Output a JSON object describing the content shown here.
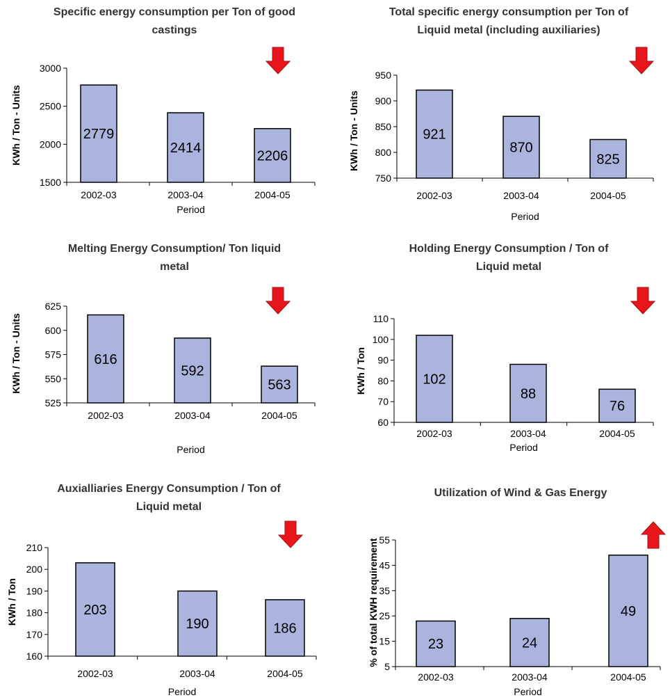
{
  "colors": {
    "bar": "#aab4dc",
    "bar_stroke": "#000000",
    "arrow": "#e8161c",
    "arrow_stroke": "#a01010",
    "axis": "#000000",
    "title": "#333333"
  },
  "chart_data": [
    {
      "type": "bar",
      "title": "Specific energy consumption per Ton of good castings",
      "title_lines": [
        "Specific energy consumption per Ton of good",
        "castings"
      ],
      "categories": [
        "2002-03",
        "2003-04",
        "2004-05"
      ],
      "values": [
        2779,
        2414,
        2206
      ],
      "value_labels": [
        "2779",
        "2414",
        "2206"
      ],
      "xlabel": "Period",
      "ylabel": "KWh / Ton - Units",
      "ylim": [
        1500,
        3000
      ],
      "yticks": [
        1500,
        2000,
        2500,
        3000
      ],
      "ytick_labels": [
        "1500",
        "2000",
        "2500",
        "3000"
      ],
      "trend_arrow": "down",
      "grid": false
    },
    {
      "type": "bar",
      "title": "Total specific energy consumption per Ton of Liquid metal (including auxiliaries)",
      "title_lines": [
        "Total specific energy consumption per Ton of",
        "Liquid metal (including auxiliaries)"
      ],
      "categories": [
        "2002-03",
        "2003-04",
        "2004-05"
      ],
      "values": [
        921,
        870,
        825
      ],
      "value_labels": [
        "921",
        "870",
        "825"
      ],
      "xlabel": "Period",
      "ylabel": "KWh / Ton - Units",
      "ylim": [
        750,
        950
      ],
      "yticks": [
        750,
        800,
        850,
        900,
        950
      ],
      "ytick_labels": [
        "750",
        "800",
        "850",
        "900",
        "950"
      ],
      "trend_arrow": "down",
      "grid": false
    },
    {
      "type": "bar",
      "title": "Melting Energy Consumption/ Ton liquid metal",
      "title_lines": [
        "Melting Energy Consumption/ Ton liquid",
        "metal"
      ],
      "categories": [
        "2002-03",
        "2003-04",
        "2004-05"
      ],
      "values": [
        616,
        592,
        563
      ],
      "value_labels": [
        "616",
        "592",
        "563"
      ],
      "xlabel": "Period",
      "ylabel": "KWh / Ton - Units",
      "ylim": [
        525,
        625
      ],
      "yticks": [
        525,
        550,
        575,
        600,
        625
      ],
      "ytick_labels": [
        "525",
        "550",
        "575",
        "600",
        "625"
      ],
      "trend_arrow": "down",
      "grid": false
    },
    {
      "type": "bar",
      "title": "Holding Energy Consumption / Ton of Liquid metal",
      "title_lines": [
        "Holding Energy Consumption / Ton of",
        "Liquid metal"
      ],
      "categories": [
        "2002-03",
        "2003-04",
        "2004-05"
      ],
      "values": [
        102,
        88,
        76
      ],
      "value_labels": [
        "102",
        "88",
        "76"
      ],
      "xlabel": "Period",
      "ylabel": "KWh / Ton",
      "ylim": [
        60,
        110
      ],
      "yticks": [
        60,
        70,
        80,
        90,
        100,
        110
      ],
      "ytick_labels": [
        "60",
        "70",
        "80",
        "90",
        "100",
        "110"
      ],
      "trend_arrow": "down",
      "grid": false
    },
    {
      "type": "bar",
      "title": "Auxialliaries Energy Consumption / Ton of Liquid metal",
      "title_lines": [
        "Auxialliaries Energy Consumption / Ton of",
        "Liquid metal"
      ],
      "categories": [
        "2002-03",
        "2003-04",
        "2004-05"
      ],
      "values": [
        203,
        190,
        186
      ],
      "value_labels": [
        "203",
        "190",
        "186"
      ],
      "xlabel": "Period",
      "ylabel": "KWh / Ton",
      "ylim": [
        160,
        210
      ],
      "yticks": [
        160,
        170,
        180,
        190,
        200,
        210
      ],
      "ytick_labels": [
        "160",
        "170",
        "180",
        "190",
        "200",
        "210"
      ],
      "trend_arrow": "down",
      "grid": false
    },
    {
      "type": "bar",
      "title": "Utilization of Wind & Gas Energy",
      "title_lines": [
        "Utilization of Wind & Gas Energy"
      ],
      "categories": [
        "2002-03",
        "2003-04",
        "2004-05"
      ],
      "values": [
        23,
        24,
        49
      ],
      "value_labels": [
        "23",
        "24",
        "49"
      ],
      "xlabel": "Period",
      "ylabel": "% of total KWH requirement",
      "ylim": [
        5,
        55
      ],
      "yticks": [
        5,
        15,
        25,
        35,
        45,
        55
      ],
      "ytick_labels": [
        "5",
        "15",
        "25",
        "35",
        "45",
        "55"
      ],
      "trend_arrow": "up",
      "grid": false
    }
  ]
}
